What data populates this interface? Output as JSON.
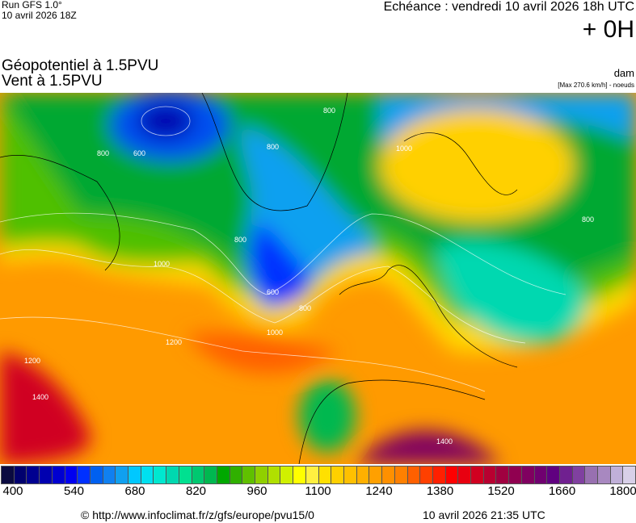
{
  "header": {
    "run": "Run GFS 1.0°",
    "run_date": "10 avril 2026 18Z",
    "echeance": "Echéance : vendredi 10 avril 2026 18h UTC",
    "lead": "+ 0H"
  },
  "titles": {
    "line1": "Géopotentiel à 1.5PVU",
    "line2": "Vent à 1.5PVU",
    "unit": "dam",
    "max": "[Max 270.6 km/h] - noeuds"
  },
  "map": {
    "contour_labels": [
      "600",
      "800",
      "800",
      "800",
      "800",
      "800",
      "1000",
      "1000",
      "1000",
      "1200",
      "1200",
      "1400",
      "1400",
      "600",
      "800"
    ]
  },
  "colorbar": {
    "ticks": [
      "400",
      "540",
      "680",
      "820",
      "960",
      "1100",
      "1240",
      "1380",
      "1520",
      "1660",
      "1800"
    ],
    "colors": [
      "#0a0a40",
      "#00006e",
      "#000090",
      "#0000b0",
      "#0000d0",
      "#0000f0",
      "#0030ff",
      "#0060f0",
      "#1080f0",
      "#10a0f0",
      "#00c8ff",
      "#00e0f0",
      "#00e8d0",
      "#00d8b0",
      "#00e090",
      "#00c870",
      "#00b850",
      "#00a800",
      "#30b000",
      "#60c000",
      "#90d000",
      "#b0e000",
      "#d0f000",
      "#ffff00",
      "#fff040",
      "#ffe000",
      "#ffd000",
      "#ffc000",
      "#ffb000",
      "#ffa000",
      "#ff9000",
      "#ff8000",
      "#ff6000",
      "#ff4000",
      "#ff2000",
      "#ff0000",
      "#e80010",
      "#d00020",
      "#b80030",
      "#a00040",
      "#900050",
      "#800060",
      "#700070",
      "#600080",
      "#702090",
      "#8040a0",
      "#9870b0",
      "#a888c0",
      "#c0b0d8",
      "#d8d0e8"
    ]
  },
  "footer": {
    "url": "© http://www.infoclimat.fr/z/gfs/europe/pvu15/0",
    "generated": "10 avril 2026 21:35 UTC"
  }
}
